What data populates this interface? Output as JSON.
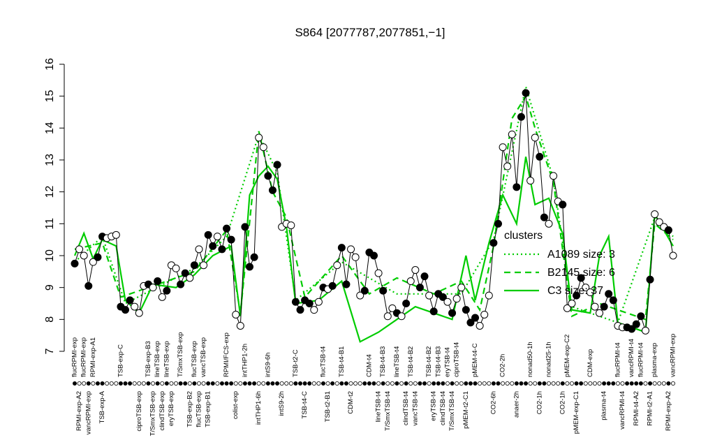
{
  "chart_data": {
    "type": "line",
    "title": "S864 [2077787,2077851,−1]",
    "ylim": [
      7,
      16
    ],
    "yticks": [
      7,
      8,
      9,
      10,
      11,
      12,
      13,
      14,
      15,
      16
    ],
    "categories": [
      "flucRPMI-exp",
      "RPMI-exp-A2",
      "flucRPMI-exp",
      "vancRPMI-exp",
      "RPMI-exp-A1",
      null,
      "TSB-exp-A",
      null,
      null,
      null,
      "TSB-exp-C",
      null,
      null,
      null,
      "ciproTSB-exp",
      null,
      "TSB-exp-B3",
      "T/SmxTSB-exp",
      "lineTSB-exp",
      "clindTSB-exp",
      "lineTSB-exp",
      "eryTSB-exp",
      null,
      "T/SmxTSB-exp",
      null,
      "TSB-exp-B2",
      "flucTSB-exp",
      "flucTSB-exp",
      "vancTSB-exp",
      "TSB-exp-B1",
      null,
      null,
      null,
      "RPMI/FCS-exp",
      null,
      "colist-exp",
      null,
      "intTHP1-2h",
      null,
      null,
      "intTHP1-6h",
      null,
      "intS9-6h",
      null,
      null,
      "intS9-2h",
      null,
      null,
      "TSB-t2-C",
      null,
      "TSB-t4-C",
      null,
      null,
      null,
      "flucTSB-t4",
      "TSB-t2-B1",
      null,
      null,
      "TSB-t4-B1",
      null,
      "CDM-t2",
      null,
      null,
      null,
      "CDM-t4",
      null,
      "lineTSB-t4",
      "TSB-t4-B3",
      "T/SmxTSB-t4",
      null,
      "lineTSB-t4",
      null,
      "clindTSB-t4",
      "TSB-t4-B2",
      "vancTSB-t4",
      null,
      null,
      "TSB-t4-B2",
      "eryTSB-t4",
      "TSB-t4-B3",
      "clindTSB-t4",
      "eryTSB-t4",
      "T/SmxTSB-t4",
      "ciproTSB-t4",
      null,
      "pMEM-t2-C1",
      null,
      "pMEM-t4-C",
      null,
      null,
      null,
      "CO2-6h",
      null,
      "CO2-2h",
      null,
      null,
      "anaer-2h",
      null,
      null,
      "nonad50-1h",
      null,
      "CO2-1h",
      null,
      "nonad25-1h",
      null,
      null,
      "CO2-1h",
      "pMEM-exp-C2",
      null,
      "pMEM-exp-C1",
      null,
      null,
      "CDM-exp",
      null,
      null,
      "plasma-t4",
      null,
      null,
      "flucRPMI-t4",
      "vancRPMI-t4",
      null,
      "vancRPMI-t4",
      "RPMI-t4-A2",
      "flucRPMI-t4",
      null,
      "RPMI-t2-A1",
      "plasma-exp",
      null,
      null,
      "RPMI-exp-A2",
      "vancRPMI-exp"
    ],
    "series": [
      {
        "color": "#000000",
        "values": [
          9.75,
          10.2,
          10.0,
          9.05,
          9.8,
          9.95,
          10.6,
          10.55,
          10.6,
          10.65,
          8.4,
          8.3,
          8.6,
          8.4,
          8.2,
          9.05,
          9.1,
          9.0,
          9.2,
          8.7,
          8.9,
          9.7,
          9.6,
          9.1,
          9.45,
          9.3,
          9.7,
          10.2,
          9.7,
          10.65,
          10.3,
          10.6,
          10.2,
          10.85,
          10.5,
          8.15,
          7.8,
          10.9,
          9.65,
          9.95,
          13.7,
          13.4,
          12.5,
          12.05,
          12.85,
          10.9,
          11.0,
          10.95,
          8.55,
          8.3,
          8.6,
          8.5,
          8.3,
          8.55,
          9.0,
          8.95,
          9.05,
          9.7,
          10.25,
          9.1,
          10.2,
          9.95,
          8.75,
          8.9,
          10.1,
          10.0,
          9.45,
          8.9,
          8.1,
          8.35,
          8.2,
          8.1,
          8.5,
          9.2,
          9.55,
          9.0,
          9.35,
          8.75,
          8.25,
          8.8,
          8.7,
          8.55,
          8.2,
          8.65,
          9.0,
          8.3,
          7.9,
          8.05,
          7.8,
          8.15,
          8.75,
          10.4,
          11.0,
          13.4,
          12.8,
          13.8,
          12.15,
          14.35,
          15.1,
          12.35,
          13.7,
          13.1,
          11.2,
          11.0,
          12.5,
          11.7,
          11.6,
          8.35,
          8.5,
          8.75,
          9.3,
          9.0,
          8.85,
          8.4,
          8.2,
          8.4,
          8.8,
          8.6,
          7.8,
          7.75,
          7.75,
          7.7,
          7.85,
          8.1,
          7.65,
          9.25,
          11.3,
          11.05,
          10.9,
          10.8,
          10.0
        ],
        "marker_filled": [
          true,
          false,
          false,
          true,
          false,
          true,
          true,
          false,
          false,
          false,
          true,
          true,
          true,
          false,
          false,
          false,
          true,
          false,
          true,
          false,
          true,
          false,
          false,
          true,
          true,
          false,
          true,
          false,
          false,
          true,
          true,
          false,
          true,
          true,
          true,
          false,
          false,
          true,
          true,
          true,
          false,
          false,
          true,
          true,
          true,
          false,
          false,
          false,
          true,
          true,
          true,
          true,
          false,
          false,
          true,
          false,
          true,
          false,
          true,
          true,
          false,
          false,
          false,
          true,
          true,
          true,
          false,
          true,
          false,
          false,
          true,
          false,
          true,
          false,
          false,
          true,
          true,
          false,
          true,
          true,
          true,
          false,
          true,
          false,
          false,
          true,
          true,
          true,
          false,
          false,
          false,
          true,
          true,
          false,
          false,
          false,
          true,
          true,
          true,
          false,
          false,
          true,
          true,
          false,
          false,
          false,
          true,
          false,
          false,
          true,
          true,
          false,
          false,
          false,
          false,
          true,
          true,
          true,
          false,
          false,
          true,
          true,
          true,
          true,
          false,
          true,
          false,
          false,
          false,
          true,
          false
        ]
      }
    ],
    "legend": {
      "title": "clusters",
      "position": "right",
      "color": "#00cc00"
    },
    "clusters": [
      {
        "name": "A1089 size: 3",
        "color": "#00cc00",
        "dash": "dotted",
        "x": [
          0,
          6,
          11,
          26,
          33,
          40,
          44,
          48,
          58,
          70,
          84,
          91,
          98,
          104,
          108,
          118,
          126,
          130
        ],
        "values": [
          9.8,
          10.6,
          8.5,
          9.6,
          10.6,
          13.8,
          12.6,
          8.6,
          9.8,
          8.8,
          8.8,
          10.5,
          15.3,
          12.4,
          8.4,
          7.9,
          11.2,
          10.6
        ]
      },
      {
        "name": "B2145 size: 6",
        "color": "#00cc00",
        "dash": "dashed",
        "x": [
          0,
          3,
          6,
          10,
          16,
          26,
          33,
          36,
          40,
          43,
          46,
          50,
          58,
          64,
          70,
          78,
          84,
          88,
          91,
          95,
          98,
          100,
          104,
          108,
          114,
          118,
          124,
          126,
          130
        ],
        "values": [
          10.2,
          10.3,
          10.4,
          8.7,
          9.0,
          9.5,
          10.8,
          8.2,
          13.9,
          12.0,
          11.2,
          8.7,
          10.0,
          8.8,
          9.3,
          8.8,
          9.2,
          8.3,
          10.3,
          14.3,
          15.0,
          14.0,
          12.3,
          8.1,
          8.5,
          8.3,
          8.0,
          11.0,
          10.5
        ]
      },
      {
        "name": "C3 size: 37",
        "color": "#00cc00",
        "dash": "solid",
        "x": [
          0,
          2,
          4,
          6,
          9,
          11,
          14,
          17,
          22,
          26,
          30,
          34,
          36,
          38,
          40,
          42,
          44,
          46,
          48,
          53,
          58,
          62,
          66,
          70,
          74,
          78,
          82,
          85,
          87,
          90,
          93,
          96,
          98,
          100,
          103,
          106,
          108,
          112,
          114,
          116,
          118,
          124,
          126,
          130
        ],
        "values": [
          10.0,
          10.7,
          9.9,
          10.5,
          10.3,
          8.6,
          8.2,
          9.1,
          9.0,
          9.4,
          10.0,
          10.3,
          8.1,
          11.9,
          12.5,
          12.8,
          12.4,
          10.9,
          8.5,
          8.6,
          9.2,
          7.3,
          7.6,
          8.0,
          8.4,
          8.2,
          8.0,
          10.0,
          8.6,
          10.4,
          11.9,
          11.0,
          13.1,
          11.6,
          11.8,
          10.7,
          8.3,
          8.2,
          10.0,
          10.6,
          7.9,
          7.6,
          11.3,
          10.3
        ]
      }
    ]
  }
}
